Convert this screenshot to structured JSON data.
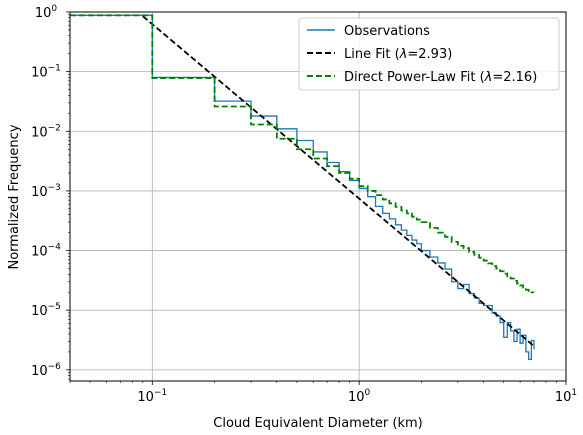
{
  "chart_data": {
    "type": "line",
    "xlabel": "Cloud Equivalent Diameter (km)",
    "ylabel": "Normalized Frequency",
    "x_scale": "log",
    "y_scale": "log",
    "xlim": [
      0.04,
      10
    ],
    "ylim": [
      6.5e-07,
      1.0
    ],
    "grid": true,
    "legend_position": "top-right",
    "x_ticks": [
      {
        "value": 0.1,
        "base": "10",
        "exp": "−1"
      },
      {
        "value": 1,
        "base": "10",
        "exp": "0"
      },
      {
        "value": 10,
        "base": "10",
        "exp": "1"
      }
    ],
    "y_ticks": [
      {
        "value": 1e-06,
        "base": "10",
        "exp": "−6"
      },
      {
        "value": 1e-05,
        "base": "10",
        "exp": "−5"
      },
      {
        "value": 0.0001,
        "base": "10",
        "exp": "−4"
      },
      {
        "value": 0.001,
        "base": "10",
        "exp": "−3"
      },
      {
        "value": 0.01,
        "base": "10",
        "exp": "−2"
      },
      {
        "value": 0.1,
        "base": "10",
        "exp": "−1"
      },
      {
        "value": 1,
        "base": "10",
        "exp": "0"
      }
    ],
    "series": [
      {
        "name": "Observations",
        "style": "step",
        "color": "#1f77b4",
        "dash": "solid",
        "x": [
          0.04,
          0.1,
          0.2,
          0.3,
          0.35,
          0.4,
          0.5,
          0.6,
          0.7,
          0.8,
          0.9,
          1.0,
          1.1,
          1.2,
          1.3,
          1.4,
          1.5,
          1.6,
          1.7,
          1.8,
          1.9,
          2.0,
          2.2,
          2.4,
          2.6,
          2.8,
          3.0,
          3.2,
          3.4,
          3.6,
          3.8,
          4.0,
          4.2,
          4.4,
          4.6,
          4.8,
          5.0,
          5.2,
          5.4,
          5.6,
          5.8,
          6.0,
          6.2,
          6.4,
          6.6,
          6.8,
          7.0
        ],
        "y": [
          0.88,
          0.08,
          0.032,
          0.018,
          0.018,
          0.011,
          0.007,
          0.0045,
          0.003,
          0.0021,
          0.0015,
          0.0011,
          0.0008,
          0.00055,
          0.00042,
          0.00034,
          0.00027,
          0.00022,
          0.00018,
          0.00015,
          0.00013,
          0.0001,
          7.8e-05,
          6.2e-05,
          4.9e-05,
          3e-05,
          2.3e-05,
          2.7e-05,
          1.9e-05,
          1.6e-05,
          1.3e-05,
          1.2e-05,
          1.2e-05,
          9e-06,
          8e-06,
          6.2e-06,
          3.5e-06,
          6.2e-06,
          4.5e-06,
          3e-06,
          4.8e-06,
          2.8e-06,
          3.8e-06,
          2e-06,
          1.5e-06,
          3.1e-06,
          2.2e-06
        ]
      },
      {
        "name": "Line Fit (λ=2.93)",
        "style": "line",
        "color": "#000000",
        "dash": "dashed",
        "x": [
          0.09,
          7.0
        ],
        "y": [
          0.85,
          2.5e-06
        ]
      },
      {
        "name": "Direct Power-Law Fit (λ=2.16)",
        "style": "step",
        "color": "#008000",
        "dash": "dashed",
        "x": [
          0.04,
          0.1,
          0.2,
          0.3,
          0.4,
          0.5,
          0.6,
          0.7,
          0.8,
          0.9,
          1.0,
          1.1,
          1.2,
          1.3,
          1.4,
          1.5,
          1.6,
          1.7,
          1.8,
          1.9,
          2.0,
          2.2,
          2.4,
          2.6,
          2.8,
          3.0,
          3.2,
          3.4,
          3.6,
          3.8,
          4.0,
          4.2,
          4.4,
          4.6,
          4.8,
          5.0,
          5.2,
          5.4,
          5.6,
          5.8,
          6.0,
          6.2,
          6.4,
          6.6,
          6.8,
          7.0
        ],
        "y": [
          0.88,
          0.078,
          0.026,
          0.013,
          0.0075,
          0.005,
          0.0035,
          0.0026,
          0.002,
          0.0016,
          0.0012,
          0.001,
          0.00085,
          0.00072,
          0.00062,
          0.00054,
          0.00047,
          0.00042,
          0.00037,
          0.00033,
          0.0003,
          0.00024,
          0.0002,
          0.00017,
          0.00014,
          0.00012,
          0.00011,
          9.5e-05,
          8.5e-05,
          7.6e-05,
          6.8e-05,
          6.1e-05,
          5.5e-05,
          5e-05,
          4.5e-05,
          4.1e-05,
          3.7e-05,
          3.4e-05,
          3.1e-05,
          2.8e-05,
          2.6e-05,
          2.4e-05,
          2.2e-05,
          2.1e-05,
          2e-05,
          2e-05
        ]
      }
    ],
    "legend": [
      {
        "prefix": "Observations",
        "lambda_value": "",
        "suffix": ""
      },
      {
        "prefix": "Line Fit (",
        "lambda_value": "=2.93",
        "suffix": ")"
      },
      {
        "prefix": "Direct Power-Law Fit (",
        "lambda_value": "=2.16",
        "suffix": ")"
      }
    ]
  }
}
